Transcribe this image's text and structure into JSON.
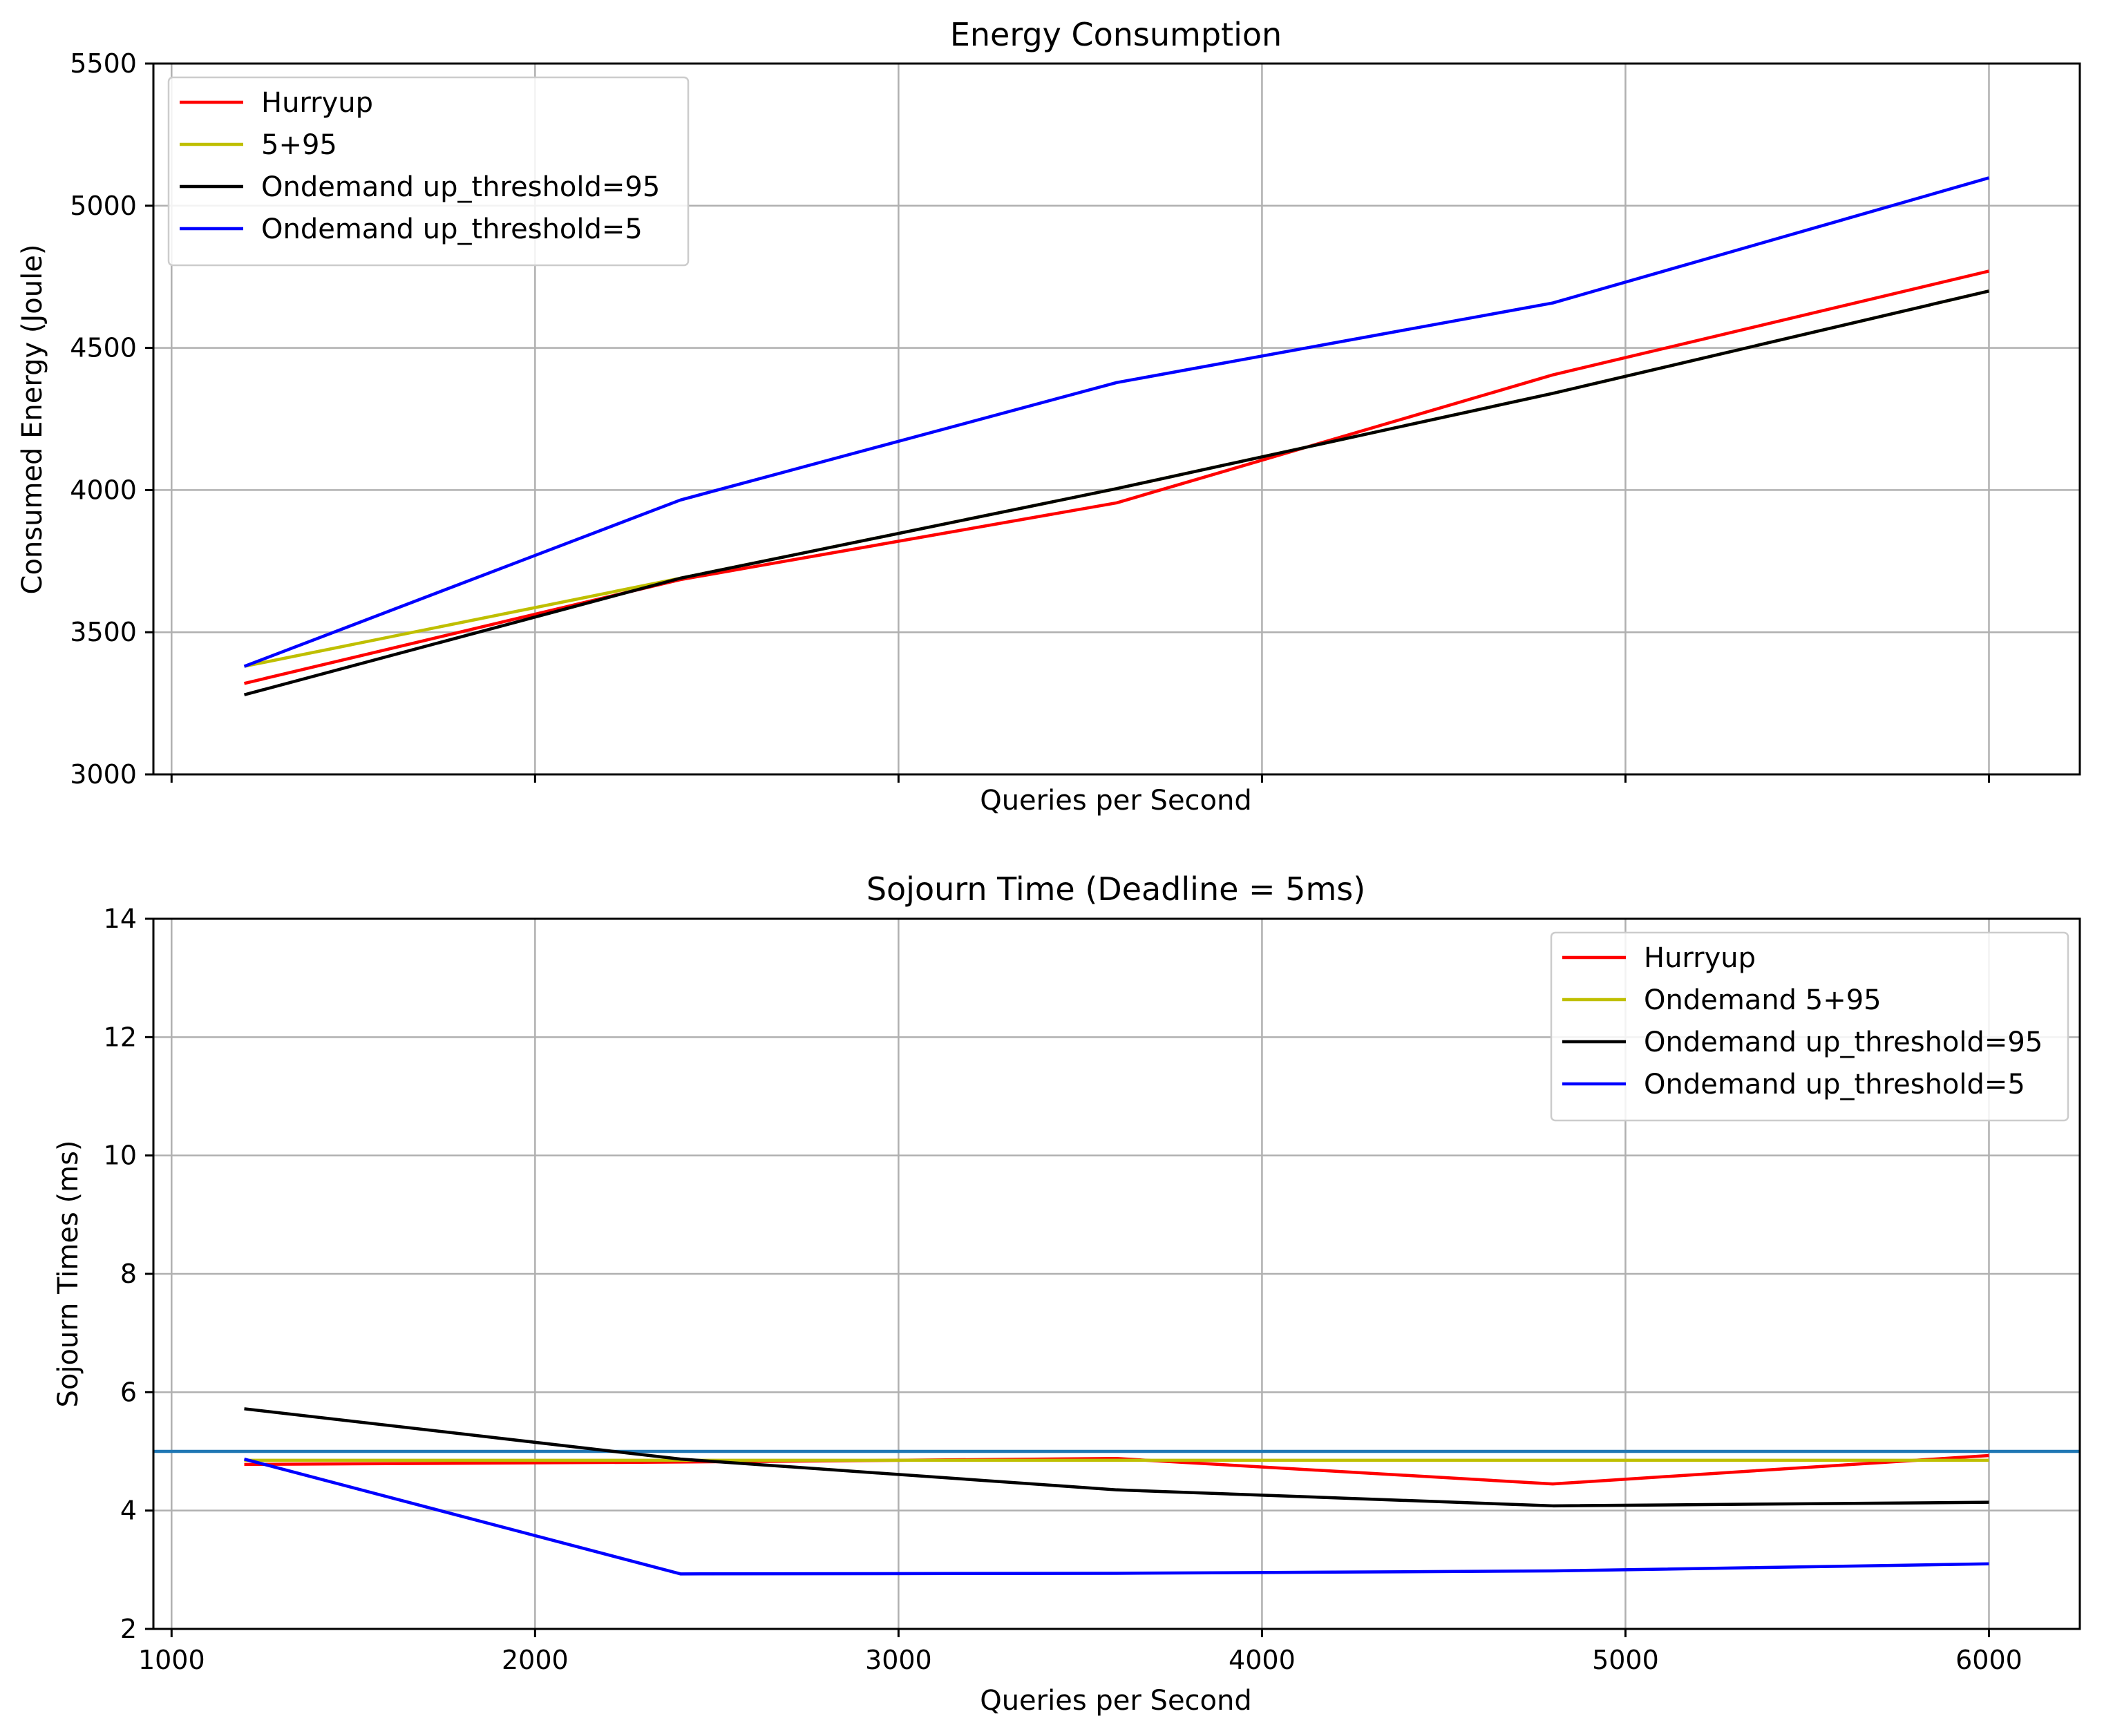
{
  "colors": {
    "hurryup": "#ff0000",
    "five_ninety_five": "#bfbf00",
    "ondemand_95": "#000000",
    "ondemand_5": "#0000ff",
    "deadline": "#1f77b4",
    "grid": "#b0b0b0"
  },
  "chart_data": [
    {
      "type": "line",
      "title": "Energy Consumption",
      "xlabel": "Queries per Second",
      "ylabel": "Consumed Energy (Joule)",
      "xlim": [
        950,
        6250
      ],
      "ylim": [
        3000,
        5500
      ],
      "xticks": [
        1000,
        2000,
        3000,
        4000,
        5000,
        6000
      ],
      "xtick_labels_visible": false,
      "yticks": [
        3000,
        3500,
        4000,
        4500,
        5000,
        5500
      ],
      "grid": true,
      "legend_position": "top-left",
      "x": [
        1200,
        2400,
        3600,
        4800,
        6000
      ],
      "series": [
        {
          "name": "Hurryup",
          "color_key": "hurryup",
          "values": [
            3320,
            3685,
            3955,
            4405,
            4770
          ]
        },
        {
          "name": "5+95",
          "color_key": "five_ninety_five",
          "values": [
            3380,
            3690,
            4005,
            4340,
            4700
          ]
        },
        {
          "name": "Ondemand up_threshold=95",
          "color_key": "ondemand_95",
          "values": [
            3280,
            3690,
            4005,
            4340,
            4700
          ]
        },
        {
          "name": "Ondemand up_threshold=5",
          "color_key": "ondemand_5",
          "values": [
            3380,
            3965,
            4378,
            4658,
            5098
          ]
        }
      ]
    },
    {
      "type": "line",
      "title": "Sojourn Time (Deadline = 5ms)",
      "xlabel": "Queries per Second",
      "ylabel": "Sojourn Times (ms)",
      "xlim": [
        950,
        6250
      ],
      "ylim": [
        2,
        14
      ],
      "xticks": [
        1000,
        2000,
        3000,
        4000,
        5000,
        6000
      ],
      "xtick_labels_visible": true,
      "yticks": [
        2,
        4,
        6,
        8,
        10,
        12,
        14
      ],
      "grid": true,
      "legend_position": "top-right",
      "x": [
        1200,
        2400,
        3600,
        4800,
        6000
      ],
      "series": [
        {
          "name": "Hurryup",
          "color_key": "hurryup",
          "values": [
            4.78,
            4.82,
            4.88,
            4.45,
            4.93
          ]
        },
        {
          "name": "Ondemand 5+95",
          "color_key": "five_ninety_five",
          "values": [
            4.85,
            4.85,
            4.85,
            4.85,
            4.85
          ]
        },
        {
          "name": "Ondemand up_threshold=95",
          "color_key": "ondemand_95",
          "values": [
            5.72,
            4.87,
            4.35,
            4.08,
            4.14
          ]
        },
        {
          "name": "Ondemand up_threshold=5",
          "color_key": "ondemand_5",
          "values": [
            4.87,
            2.93,
            2.94,
            2.98,
            3.1
          ]
        }
      ],
      "hline": {
        "y": 5,
        "color_key": "deadline"
      }
    }
  ]
}
